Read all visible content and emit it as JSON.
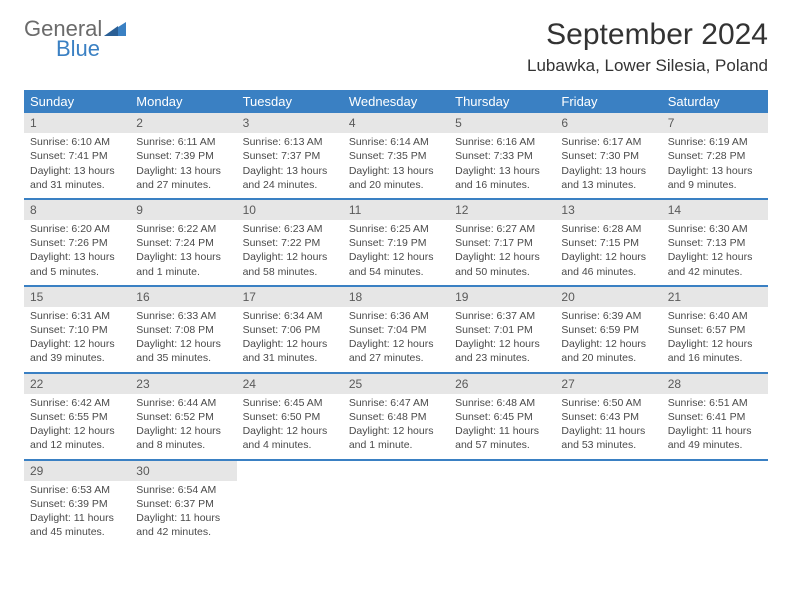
{
  "logo": {
    "line1": "General",
    "line2": "Blue"
  },
  "title": "September 2024",
  "location": "Lubawka, Lower Silesia, Poland",
  "colors": {
    "header_bar": "#3a80c3",
    "daynum_bg": "#e6e6e6",
    "text": "#4a4a4a",
    "logo_gray": "#6b6b6b",
    "logo_blue": "#3a80c3"
  },
  "weekdays": [
    "Sunday",
    "Monday",
    "Tuesday",
    "Wednesday",
    "Thursday",
    "Friday",
    "Saturday"
  ],
  "weeks": [
    [
      {
        "n": "1",
        "sunrise": "Sunrise: 6:10 AM",
        "sunset": "Sunset: 7:41 PM",
        "daylight": "Daylight: 13 hours and 31 minutes."
      },
      {
        "n": "2",
        "sunrise": "Sunrise: 6:11 AM",
        "sunset": "Sunset: 7:39 PM",
        "daylight": "Daylight: 13 hours and 27 minutes."
      },
      {
        "n": "3",
        "sunrise": "Sunrise: 6:13 AM",
        "sunset": "Sunset: 7:37 PM",
        "daylight": "Daylight: 13 hours and 24 minutes."
      },
      {
        "n": "4",
        "sunrise": "Sunrise: 6:14 AM",
        "sunset": "Sunset: 7:35 PM",
        "daylight": "Daylight: 13 hours and 20 minutes."
      },
      {
        "n": "5",
        "sunrise": "Sunrise: 6:16 AM",
        "sunset": "Sunset: 7:33 PM",
        "daylight": "Daylight: 13 hours and 16 minutes."
      },
      {
        "n": "6",
        "sunrise": "Sunrise: 6:17 AM",
        "sunset": "Sunset: 7:30 PM",
        "daylight": "Daylight: 13 hours and 13 minutes."
      },
      {
        "n": "7",
        "sunrise": "Sunrise: 6:19 AM",
        "sunset": "Sunset: 7:28 PM",
        "daylight": "Daylight: 13 hours and 9 minutes."
      }
    ],
    [
      {
        "n": "8",
        "sunrise": "Sunrise: 6:20 AM",
        "sunset": "Sunset: 7:26 PM",
        "daylight": "Daylight: 13 hours and 5 minutes."
      },
      {
        "n": "9",
        "sunrise": "Sunrise: 6:22 AM",
        "sunset": "Sunset: 7:24 PM",
        "daylight": "Daylight: 13 hours and 1 minute."
      },
      {
        "n": "10",
        "sunrise": "Sunrise: 6:23 AM",
        "sunset": "Sunset: 7:22 PM",
        "daylight": "Daylight: 12 hours and 58 minutes."
      },
      {
        "n": "11",
        "sunrise": "Sunrise: 6:25 AM",
        "sunset": "Sunset: 7:19 PM",
        "daylight": "Daylight: 12 hours and 54 minutes."
      },
      {
        "n": "12",
        "sunrise": "Sunrise: 6:27 AM",
        "sunset": "Sunset: 7:17 PM",
        "daylight": "Daylight: 12 hours and 50 minutes."
      },
      {
        "n": "13",
        "sunrise": "Sunrise: 6:28 AM",
        "sunset": "Sunset: 7:15 PM",
        "daylight": "Daylight: 12 hours and 46 minutes."
      },
      {
        "n": "14",
        "sunrise": "Sunrise: 6:30 AM",
        "sunset": "Sunset: 7:13 PM",
        "daylight": "Daylight: 12 hours and 42 minutes."
      }
    ],
    [
      {
        "n": "15",
        "sunrise": "Sunrise: 6:31 AM",
        "sunset": "Sunset: 7:10 PM",
        "daylight": "Daylight: 12 hours and 39 minutes."
      },
      {
        "n": "16",
        "sunrise": "Sunrise: 6:33 AM",
        "sunset": "Sunset: 7:08 PM",
        "daylight": "Daylight: 12 hours and 35 minutes."
      },
      {
        "n": "17",
        "sunrise": "Sunrise: 6:34 AM",
        "sunset": "Sunset: 7:06 PM",
        "daylight": "Daylight: 12 hours and 31 minutes."
      },
      {
        "n": "18",
        "sunrise": "Sunrise: 6:36 AM",
        "sunset": "Sunset: 7:04 PM",
        "daylight": "Daylight: 12 hours and 27 minutes."
      },
      {
        "n": "19",
        "sunrise": "Sunrise: 6:37 AM",
        "sunset": "Sunset: 7:01 PM",
        "daylight": "Daylight: 12 hours and 23 minutes."
      },
      {
        "n": "20",
        "sunrise": "Sunrise: 6:39 AM",
        "sunset": "Sunset: 6:59 PM",
        "daylight": "Daylight: 12 hours and 20 minutes."
      },
      {
        "n": "21",
        "sunrise": "Sunrise: 6:40 AM",
        "sunset": "Sunset: 6:57 PM",
        "daylight": "Daylight: 12 hours and 16 minutes."
      }
    ],
    [
      {
        "n": "22",
        "sunrise": "Sunrise: 6:42 AM",
        "sunset": "Sunset: 6:55 PM",
        "daylight": "Daylight: 12 hours and 12 minutes."
      },
      {
        "n": "23",
        "sunrise": "Sunrise: 6:44 AM",
        "sunset": "Sunset: 6:52 PM",
        "daylight": "Daylight: 12 hours and 8 minutes."
      },
      {
        "n": "24",
        "sunrise": "Sunrise: 6:45 AM",
        "sunset": "Sunset: 6:50 PM",
        "daylight": "Daylight: 12 hours and 4 minutes."
      },
      {
        "n": "25",
        "sunrise": "Sunrise: 6:47 AM",
        "sunset": "Sunset: 6:48 PM",
        "daylight": "Daylight: 12 hours and 1 minute."
      },
      {
        "n": "26",
        "sunrise": "Sunrise: 6:48 AM",
        "sunset": "Sunset: 6:45 PM",
        "daylight": "Daylight: 11 hours and 57 minutes."
      },
      {
        "n": "27",
        "sunrise": "Sunrise: 6:50 AM",
        "sunset": "Sunset: 6:43 PM",
        "daylight": "Daylight: 11 hours and 53 minutes."
      },
      {
        "n": "28",
        "sunrise": "Sunrise: 6:51 AM",
        "sunset": "Sunset: 6:41 PM",
        "daylight": "Daylight: 11 hours and 49 minutes."
      }
    ],
    [
      {
        "n": "29",
        "sunrise": "Sunrise: 6:53 AM",
        "sunset": "Sunset: 6:39 PM",
        "daylight": "Daylight: 11 hours and 45 minutes."
      },
      {
        "n": "30",
        "sunrise": "Sunrise: 6:54 AM",
        "sunset": "Sunset: 6:37 PM",
        "daylight": "Daylight: 11 hours and 42 minutes."
      },
      null,
      null,
      null,
      null,
      null
    ]
  ]
}
